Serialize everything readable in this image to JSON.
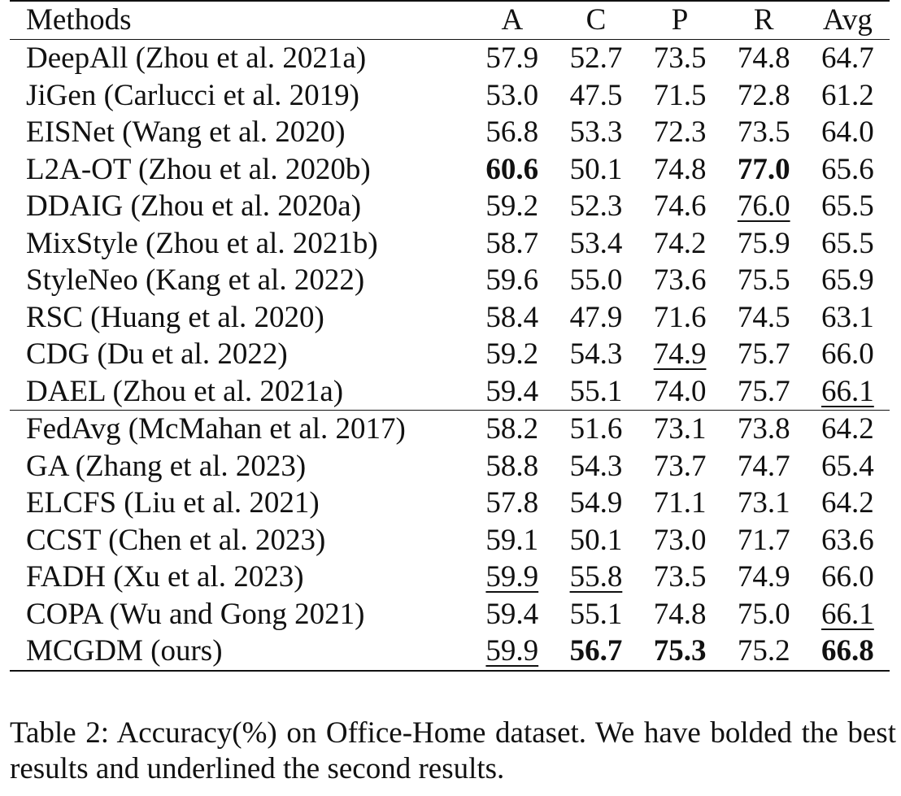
{
  "table": {
    "headers": [
      "Methods",
      "A",
      "C",
      "P",
      "R",
      "Avg"
    ],
    "group_a": [
      {
        "method": "DeepAll (Zhou et al. 2021a)",
        "values": [
          "57.9",
          "52.7",
          "73.5",
          "74.8",
          "64.7"
        ],
        "bold": [],
        "underline": []
      },
      {
        "method": "JiGen (Carlucci et al. 2019)",
        "values": [
          "53.0",
          "47.5",
          "71.5",
          "72.8",
          "61.2"
        ],
        "bold": [],
        "underline": []
      },
      {
        "method": "EISNet (Wang et al. 2020)",
        "values": [
          "56.8",
          "53.3",
          "72.3",
          "73.5",
          "64.0"
        ],
        "bold": [],
        "underline": []
      },
      {
        "method": "L2A-OT (Zhou et al. 2020b)",
        "values": [
          "60.6",
          "50.1",
          "74.8",
          "77.0",
          "65.6"
        ],
        "bold": [
          0,
          3
        ],
        "underline": []
      },
      {
        "method": "DDAIG (Zhou et al. 2020a)",
        "values": [
          "59.2",
          "52.3",
          "74.6",
          "76.0",
          "65.5"
        ],
        "bold": [],
        "underline": [
          3
        ]
      },
      {
        "method": "MixStyle (Zhou et al. 2021b)",
        "values": [
          "58.7",
          "53.4",
          "74.2",
          "75.9",
          "65.5"
        ],
        "bold": [],
        "underline": []
      },
      {
        "method": "StyleNeo (Kang et al. 2022)",
        "values": [
          "59.6",
          "55.0",
          "73.6",
          "75.5",
          "65.9"
        ],
        "bold": [],
        "underline": []
      },
      {
        "method": "RSC (Huang et al. 2020)",
        "values": [
          "58.4",
          "47.9",
          "71.6",
          "74.5",
          "63.1"
        ],
        "bold": [],
        "underline": []
      },
      {
        "method": "CDG (Du et al. 2022)",
        "values": [
          "59.2",
          "54.3",
          "74.9",
          "75.7",
          "66.0"
        ],
        "bold": [],
        "underline": [
          2
        ]
      },
      {
        "method": "DAEL (Zhou et al. 2021a)",
        "values": [
          "59.4",
          "55.1",
          "74.0",
          "75.7",
          "66.1"
        ],
        "bold": [],
        "underline": [
          4
        ]
      }
    ],
    "group_b": [
      {
        "method": "FedAvg (McMahan et al. 2017)",
        "values": [
          "58.2",
          "51.6",
          "73.1",
          "73.8",
          "64.2"
        ],
        "bold": [],
        "underline": []
      },
      {
        "method": "GA (Zhang et al. 2023)",
        "values": [
          "58.8",
          "54.3",
          "73.7",
          "74.7",
          "65.4"
        ],
        "bold": [],
        "underline": []
      },
      {
        "method": "ELCFS (Liu et al. 2021)",
        "values": [
          "57.8",
          "54.9",
          "71.1",
          "73.1",
          "64.2"
        ],
        "bold": [],
        "underline": []
      },
      {
        "method": "CCST (Chen et al. 2023)",
        "values": [
          "59.1",
          "50.1",
          "73.0",
          "71.7",
          "63.6"
        ],
        "bold": [],
        "underline": []
      },
      {
        "method": "FADH (Xu et al. 2023)",
        "values": [
          "59.9",
          "55.8",
          "73.5",
          "74.9",
          "66.0"
        ],
        "bold": [],
        "underline": [
          0,
          1
        ]
      },
      {
        "method": "COPA (Wu and Gong 2021)",
        "values": [
          "59.4",
          "55.1",
          "74.8",
          "75.0",
          "66.1"
        ],
        "bold": [],
        "underline": [
          4
        ]
      },
      {
        "method": "MCGDM (ours)",
        "values": [
          "59.9",
          "56.7",
          "75.3",
          "75.2",
          "66.8"
        ],
        "bold": [
          1,
          2,
          4
        ],
        "underline": [
          0
        ]
      }
    ]
  },
  "caption": "Table 2: Accuracy(%) on Office-Home dataset. We have bolded the best results and underlined the second results."
}
